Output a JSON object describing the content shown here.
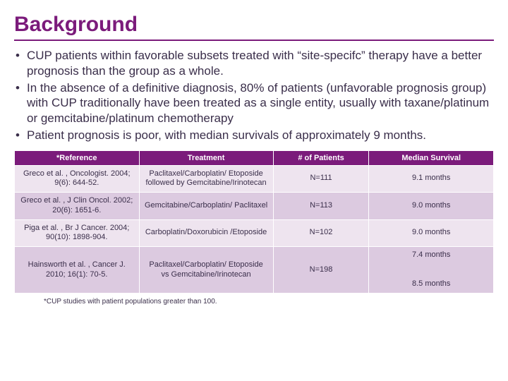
{
  "title": "Background",
  "title_color": "#7b1b7b",
  "text_color": "#3a2e4a",
  "bullets": [
    "CUP patients within favorable subsets treated with “site-specifc” therapy have a better prognosis than the group as a whole.",
    "In the absence of a definitive diagnosis, 80% of patients (unfavorable prognosis group) with CUP traditionally have been treated as a single entity, usually with taxane/platinum or gemcitabine/platinum chemotherapy",
    "Patient prognosis is poor, with median survivals of approximately 9 months."
  ],
  "table": {
    "header_bg": "#7b1b7b",
    "header_fg": "#ffffff",
    "row_odd_bg": "#eee4ef",
    "row_even_bg": "#dccae0",
    "columns": [
      "*Reference",
      "Treatment",
      "# of Patients",
      "Median  Survival"
    ],
    "rows": [
      {
        "ref": "Greco et al. , Oncologist. 2004; 9(6): 644-52.",
        "trt": "Paclitaxel/Carboplatin/ Etoposide followed by Gemcitabine/Irinotecan",
        "n": "N=111",
        "surv": "9.1 months"
      },
      {
        "ref": "Greco et al. , J Clin Oncol. 2002; 20(6): 1651-6.",
        "trt": "Gemcitabine/Carboplatin/ Paclitaxel",
        "n": "N=113",
        "surv": "9.0 months"
      },
      {
        "ref": "Piga et al. , Br J Cancer. 2004; 90(10): 1898-904.",
        "trt": "Carboplatin/Doxorubicin /Etoposide",
        "n": "N=102",
        "surv": "9.0 months"
      },
      {
        "ref": "Hainsworth et al. , Cancer J. 2010; 16(1): 70-5.",
        "trt": "Paclitaxel/Carboplatin/ Etoposide\nvs Gemcitabine/Irinotecan",
        "n": "N=198",
        "surv": "7.4 months\n\n8.5 months"
      }
    ]
  },
  "footnote": "*CUP studies with patient populations greater than 100."
}
